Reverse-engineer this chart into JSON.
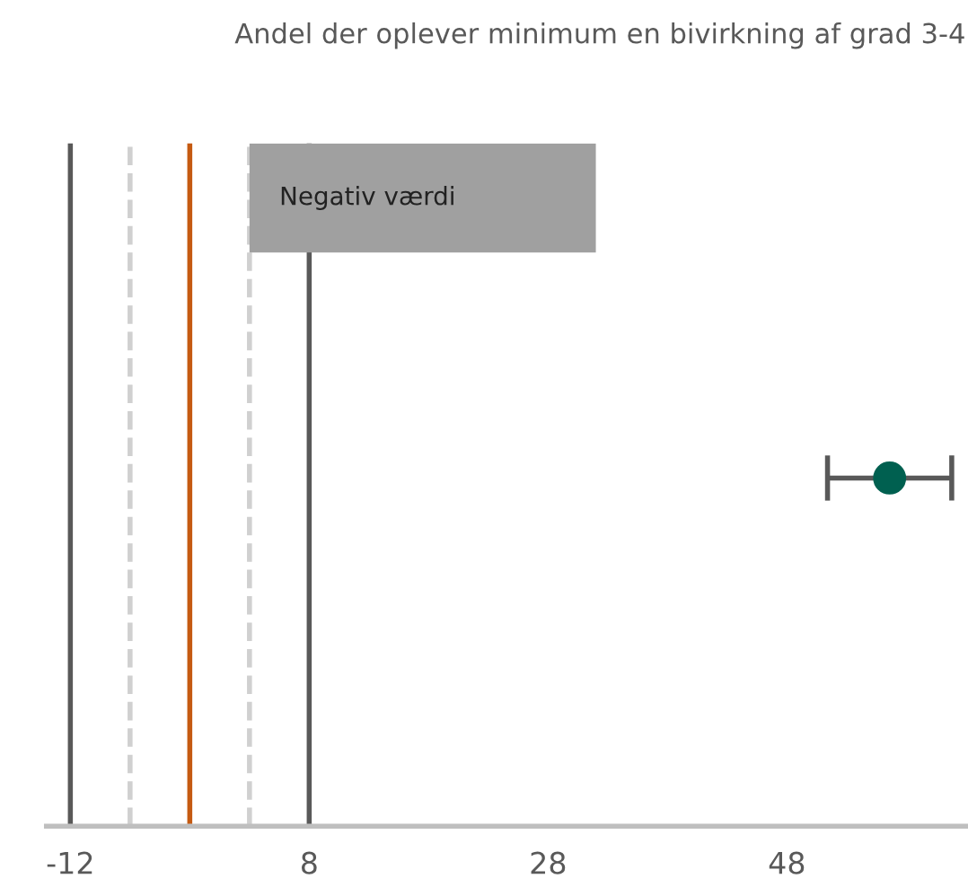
{
  "chart_data": {
    "type": "scatter",
    "title": "Andel der oplever minimum en bivirkning af grad 3-4",
    "orientation": "horizontal",
    "categories": [
      null
    ],
    "series": [
      {
        "color": "#006050",
        "values": [
          56.6
        ],
        "errors": [
          [
            51.4,
            61.8
          ]
        ]
      }
    ],
    "xlim": [
      -14,
      63
    ],
    "xticks": [
      -12,
      8,
      28,
      48
    ],
    "grid": false,
    "marker": "circle",
    "legend": false,
    "ref_lines": [
      {
        "axis": "x",
        "value": -12,
        "color": "#595959",
        "line_style": "solid"
      },
      {
        "axis": "x",
        "value": -7,
        "color": "#d0d0d0",
        "line_style": "dashed"
      },
      {
        "axis": "x",
        "value": -2,
        "color": "#c55a11",
        "line_style": "solid"
      },
      {
        "axis": "x",
        "value": 3,
        "color": "#d0d0d0",
        "line_style": "dashed"
      },
      {
        "axis": "x",
        "value": 8,
        "color": "#595959",
        "line_style": "solid"
      }
    ],
    "bands": [
      {
        "axis": "x",
        "from": 3,
        "to": 32,
        "label": "Negativ værdi",
        "color": "#a0a0a0"
      }
    ]
  }
}
